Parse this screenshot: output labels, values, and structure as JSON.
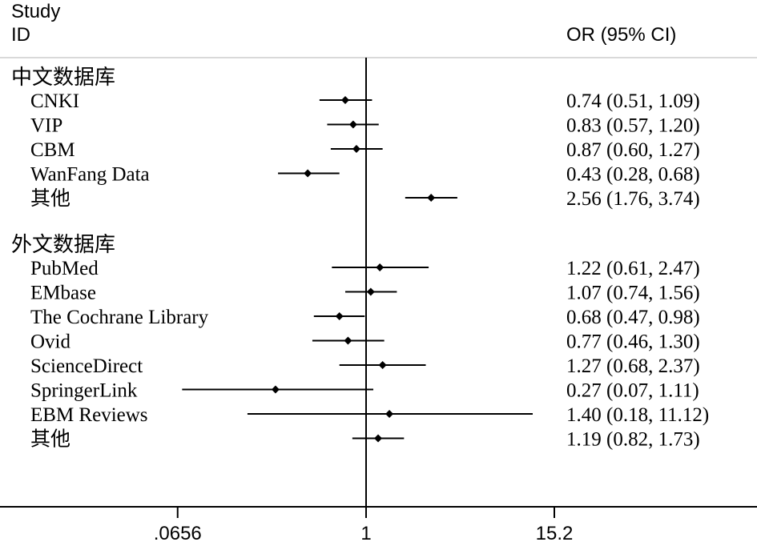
{
  "header": {
    "study_line1": "Study",
    "study_line2": "ID",
    "or_label": "OR (95% CI)"
  },
  "chart_data": {
    "type": "forest",
    "x_scale": "log",
    "null_line": 1,
    "ticks": [
      {
        "value": 0.0656,
        "label": ".0656"
      },
      {
        "value": 1,
        "label": "1"
      },
      {
        "value": 15.2,
        "label": "15.2"
      }
    ],
    "groups": [
      {
        "name": "中文数据库",
        "studies": [
          {
            "label": "CNKI",
            "or": 0.74,
            "lo": 0.51,
            "hi": 1.09,
            "ci_text": "0.74 (0.51, 1.09)"
          },
          {
            "label": "VIP",
            "or": 0.83,
            "lo": 0.57,
            "hi": 1.2,
            "ci_text": "0.83 (0.57, 1.20)"
          },
          {
            "label": "CBM",
            "or": 0.87,
            "lo": 0.6,
            "hi": 1.27,
            "ci_text": "0.87 (0.60, 1.27)"
          },
          {
            "label": "WanFang Data",
            "or": 0.43,
            "lo": 0.28,
            "hi": 0.68,
            "ci_text": "0.43 (0.28, 0.68)"
          },
          {
            "label": "其他",
            "or": 2.56,
            "lo": 1.76,
            "hi": 3.74,
            "ci_text": "2.56 (1.76, 3.74)"
          }
        ]
      },
      {
        "name": "外文数据库",
        "studies": [
          {
            "label": "PubMed",
            "or": 1.22,
            "lo": 0.61,
            "hi": 2.47,
            "ci_text": "1.22 (0.61, 2.47)"
          },
          {
            "label": "EMbase",
            "or": 1.07,
            "lo": 0.74,
            "hi": 1.56,
            "ci_text": "1.07 (0.74, 1.56)"
          },
          {
            "label": "The Cochrane Library",
            "or": 0.68,
            "lo": 0.47,
            "hi": 0.98,
            "ci_text": "0.68 (0.47, 0.98)"
          },
          {
            "label": "Ovid",
            "or": 0.77,
            "lo": 0.46,
            "hi": 1.3,
            "ci_text": "0.77 (0.46, 1.30)"
          },
          {
            "label": "ScienceDirect",
            "or": 1.27,
            "lo": 0.68,
            "hi": 2.37,
            "ci_text": "1.27 (0.68, 2.37)"
          },
          {
            "label": "SpringerLink",
            "or": 0.27,
            "lo": 0.07,
            "hi": 1.11,
            "ci_text": "0.27 (0.07, 1.11)"
          },
          {
            "label": "EBM Reviews",
            "or": 1.4,
            "lo": 0.18,
            "hi": 11.12,
            "ci_text": "1.40 (0.18, 11.12)"
          },
          {
            "label": "其他",
            "or": 1.19,
            "lo": 0.82,
            "hi": 1.73,
            "ci_text": "1.19 (0.82, 1.73)"
          }
        ]
      }
    ],
    "colors": {
      "ink": "#000000",
      "rule": "#d9d9d9",
      "background": "#ffffff"
    }
  }
}
